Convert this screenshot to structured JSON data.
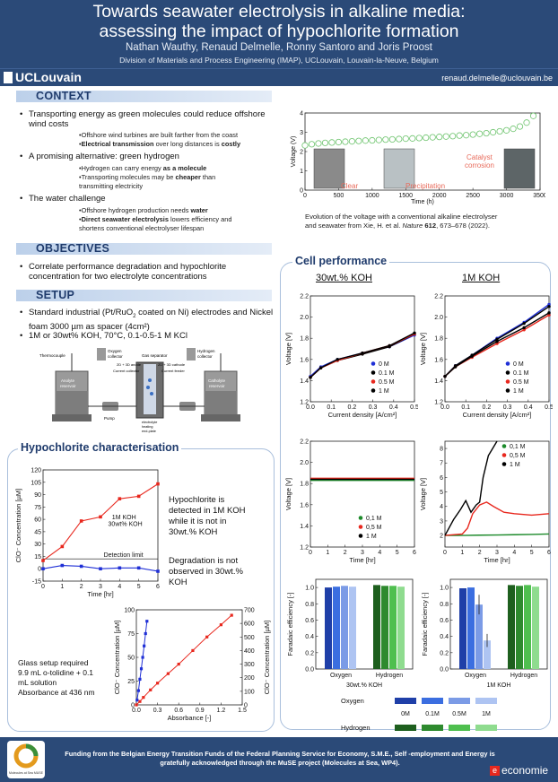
{
  "header": {
    "title_l1": "Towards seawater electrolysis in alkaline media:",
    "title_l2": "assessing the impact of hypochlorite formation",
    "authors": "Nathan Wauthy, Renaud Delmelle, Ronny Santoro and Joris Proost",
    "affiliation": "Division of Materials and Process Engineering (IMAP), UCLouvain, Louvain-la-Neuve, Belgium",
    "logo": "UCLouvain",
    "email": "renaud.delmelle@uclouvain.be"
  },
  "context": {
    "heading": "CONTEXT",
    "b1": "Transporting energy as green molecules could reduce offshore wind costs",
    "b1s1": "•Offshore wind turbines are built farther from the coast",
    "b1s2a": "•",
    "b1s2b": "Electrical transmission",
    "b1s2c": " over long distances is ",
    "b1s2d": "costly",
    "b2": "A promising alternative: green hydrogen",
    "b2s1a": "•Hydrogen can carry energy ",
    "b2s1b": "as a molecule",
    "b2s2a": "•Transporting molecules may be ",
    "b2s2b": "cheaper",
    "b2s2c": " than",
    "b2s2d": "transmitting electricity",
    "b3": "The water challenge",
    "b3s1a": "•Offshore hydrogen production needs ",
    "b3s1b": "water",
    "b3s2a": "•",
    "b3s2b": "Direct seawater electrolysis",
    "b3s2c": " lowers efficiency and",
    "b3s2d": "shortens conventional electrolyser lifespan",
    "fig_caption_l1": "Evolution of the voltage with a conventional alkaline electrolyser",
    "fig_caption_l2a": "and seawater from Xie, H. et al. ",
    "fig_caption_l2b": "Nature",
    "fig_caption_l2c": " 612",
    "fig_caption_l2d": ", 673–678 (2022).",
    "fig_labels": {
      "clear": "Clear",
      "precipitation": "Precipitation",
      "catalyst": "Catalyst",
      "corrosion": "corrosion",
      "xlabel": "Time (h)",
      "ylabel": "Voltage (V)"
    }
  },
  "objectives": {
    "heading": "OBJECTIVES",
    "b1": "Correlate performance degradation and hypochlorite concentration for two electrolyte concentrations"
  },
  "setup": {
    "heading": "SETUP",
    "b1a": "Standard industrial (Pt/RuO",
    "b1sub": "2",
    "b1b": " coated on Ni) electrodes and Nickel foam 3000 µm as spacer (4cm²)",
    "b2": "1M or 30wt% KOH, 70°C, 0.1-0.5-1 M KCl",
    "diagram": {
      "thermocouple": "Thermocouple",
      "oxygen": "Oxygen",
      "oxygen2": "collector",
      "hydrogen": "Hydrogen",
      "hydrogen2": "collector",
      "gas_sep": "Gas separator",
      "anode": "2D + 3D anode",
      "cathode": "2D + 3D cathode",
      "cur_coll": "Current collector",
      "cur_feed": "Current feeder",
      "anolyte": "Anolyte",
      "anolyte2": "reservoir",
      "catholyte": "Catholyte",
      "catholyte2": "reservoir",
      "pump": "Pump",
      "elec": "electrolyte",
      "elec2": "heating",
      "elec3": "end-plate"
    }
  },
  "hypo": {
    "heading": "Hypochlorite characterisation",
    "text1_l1": "Hypochlorite is",
    "text1_l2": "detected in 1M KOH",
    "text1_l3": "while it is not in",
    "text1_l4": "30wt.% KOH",
    "text2_l1": "Degradation is not",
    "text2_l2": "observed in 30wt.%",
    "text2_l3": "KOH",
    "glass_l1": "Glass setup required",
    "glass_l2": "9.9 mL o-tolidine + 0.1",
    "glass_l3": "mL solution",
    "glass_l4": "Absorbance at 436 nm"
  },
  "cell": {
    "heading": "Cell performance",
    "col1": "30wt.% KOH",
    "col2": "1M KOH"
  },
  "footer": {
    "l1": "Funding from the Belgian Energy Transition Funds of the Federal Planning Service for Economy, S.M.E., Self -employment and Energy is",
    "l2": "gratefully acknowledged through the MuSE project (Molecules at Sea, WP4).",
    "left_logo": "Molecules at Sea MUSE",
    "right_logo": "economie"
  },
  "colors": {
    "navy": "#2b4a78",
    "red": "#e8281e",
    "blue": "#1f2fd6",
    "green": "#1c8a2a",
    "black": "#000000"
  },
  "chart_data": [
    {
      "id": "context-voltage",
      "type": "scatter",
      "title": "",
      "xlabel": "Time (h)",
      "ylabel": "Voltage (V)",
      "xlim": [
        0,
        3500
      ],
      "ylim": [
        0,
        4
      ],
      "xticks": [
        0,
        500,
        1000,
        1500,
        2000,
        2500,
        3000,
        3500
      ],
      "yticks": [
        0,
        1,
        2,
        3,
        4
      ],
      "x": [
        0,
        100,
        200,
        300,
        400,
        500,
        600,
        700,
        800,
        900,
        1000,
        1100,
        1200,
        1300,
        1400,
        1500,
        1600,
        1700,
        1800,
        1900,
        2000,
        2100,
        2200,
        2300,
        2400,
        2500,
        2600,
        2700,
        2800,
        2900,
        3000,
        3100,
        3200,
        3300,
        3400
      ],
      "y": [
        2.32,
        2.38,
        2.42,
        2.45,
        2.47,
        2.49,
        2.51,
        2.53,
        2.55,
        2.57,
        2.58,
        2.6,
        2.62,
        2.63,
        2.65,
        2.67,
        2.68,
        2.7,
        2.72,
        2.74,
        2.76,
        2.78,
        2.8,
        2.83,
        2.85,
        2.88,
        2.92,
        2.95,
        3.0,
        3.05,
        3.1,
        3.18,
        3.3,
        3.5,
        3.85
      ]
    },
    {
      "id": "iv-30wt",
      "type": "line",
      "xlabel": "Current density [A/cm²]",
      "ylabel": "Voltage [V]",
      "xlim": [
        0,
        0.5
      ],
      "ylim": [
        1.2,
        2.2
      ],
      "xticks": [
        "0.0",
        "0.1",
        "0.2",
        "0.3",
        "0.4",
        "0.5"
      ],
      "yticks": [
        "1.2",
        "1.4",
        "1.6",
        "1.8",
        "2.0",
        "2.2"
      ],
      "series": [
        {
          "name": "0 M",
          "color": "#1f2fd6",
          "x": [
            0,
            0.05,
            0.13,
            0.25,
            0.38,
            0.5
          ],
          "y": [
            1.44,
            1.53,
            1.6,
            1.66,
            1.72,
            1.83
          ]
        },
        {
          "name": "0.1 M",
          "color": "#000000",
          "x": [
            0,
            0.05,
            0.13,
            0.25,
            0.38,
            0.5
          ],
          "y": [
            1.43,
            1.52,
            1.59,
            1.65,
            1.72,
            1.84
          ]
        },
        {
          "name": "0.5 M",
          "color": "#e8281e",
          "x": [
            0,
            0.05,
            0.13,
            0.25,
            0.38,
            0.5
          ],
          "y": [
            1.43,
            1.52,
            1.59,
            1.66,
            1.73,
            1.84
          ]
        },
        {
          "name": "1 M",
          "color": "#000000",
          "x": [
            0,
            0.05,
            0.13,
            0.25,
            0.38,
            0.5
          ],
          "y": [
            1.43,
            1.52,
            1.6,
            1.66,
            1.73,
            1.85
          ]
        }
      ]
    },
    {
      "id": "iv-1M",
      "type": "line",
      "xlabel": "Current density [A/cm²]",
      "ylabel": "Voltage [V]",
      "xlim": [
        0,
        0.5
      ],
      "ylim": [
        1.2,
        2.2
      ],
      "xticks": [
        "0.0",
        "0.1",
        "0.2",
        "0.3",
        "0.4",
        "0.5"
      ],
      "yticks": [
        "1.2",
        "1.4",
        "1.6",
        "1.8",
        "2.0",
        "2.2"
      ],
      "series": [
        {
          "name": "0 M",
          "color": "#1f2fd6",
          "x": [
            0,
            0.05,
            0.13,
            0.25,
            0.38,
            0.5
          ],
          "y": [
            1.44,
            1.54,
            1.64,
            1.8,
            1.95,
            2.12
          ]
        },
        {
          "name": "0.1 M",
          "color": "#000000",
          "x": [
            0,
            0.05,
            0.13,
            0.25,
            0.38,
            0.5
          ],
          "y": [
            1.44,
            1.54,
            1.64,
            1.79,
            1.94,
            2.1
          ]
        },
        {
          "name": "0.5 M",
          "color": "#e8281e",
          "x": [
            0,
            0.05,
            0.13,
            0.25,
            0.38,
            0.5
          ],
          "y": [
            1.44,
            1.53,
            1.62,
            1.75,
            1.88,
            2.02
          ]
        },
        {
          "name": "1 M",
          "color": "#000000",
          "x": [
            0,
            0.05,
            0.13,
            0.25,
            0.38,
            0.5
          ],
          "y": [
            1.44,
            1.53,
            1.63,
            1.77,
            1.9,
            2.04
          ]
        }
      ]
    },
    {
      "id": "vt-30wt",
      "type": "line",
      "xlabel": "Time [hr]",
      "ylabel": "Voltage [V]",
      "xlim": [
        0,
        6
      ],
      "ylim": [
        1.2,
        2.2
      ],
      "xticks": [
        "0",
        "1",
        "2",
        "3",
        "4",
        "5",
        "6"
      ],
      "yticks": [
        "1.2",
        "1.4",
        "1.6",
        "1.8",
        "2.0",
        "2.2"
      ],
      "series": [
        {
          "name": "0,1 M",
          "color": "#1c8a2a",
          "x": [
            0,
            6
          ],
          "y": [
            1.83,
            1.83
          ]
        },
        {
          "name": "0,5 M",
          "color": "#e8281e",
          "x": [
            0,
            6
          ],
          "y": [
            1.85,
            1.85
          ]
        },
        {
          "name": "1 M",
          "color": "#000000",
          "x": [
            0,
            6
          ],
          "y": [
            1.84,
            1.84
          ]
        }
      ]
    },
    {
      "id": "vt-1M",
      "type": "line",
      "xlabel": "Time [hr]",
      "ylabel": "Voltage [V]",
      "xlim": [
        0,
        6
      ],
      "ylim": [
        1.2,
        8.5
      ],
      "xticks": [
        "0",
        "1",
        "2",
        "3",
        "4",
        "5",
        "6"
      ],
      "yticks": [
        "2",
        "3",
        "4",
        "5",
        "6",
        "7",
        "8"
      ],
      "series": [
        {
          "name": "0,1 M",
          "color": "#1c8a2a",
          "x": [
            0,
            1,
            2,
            3,
            4,
            5,
            6
          ],
          "y": [
            2.0,
            2.0,
            2.02,
            2.03,
            2.05,
            2.07,
            2.1
          ]
        },
        {
          "name": "0,5 M",
          "color": "#e8281e",
          "x": [
            0,
            1.0,
            1.3,
            1.6,
            2.0,
            2.4,
            2.8,
            3.4,
            4,
            5,
            6
          ],
          "y": [
            2.0,
            2.1,
            2.5,
            3.5,
            4.1,
            4.3,
            4.0,
            3.6,
            3.5,
            3.4,
            3.5
          ]
        },
        {
          "name": "1 M",
          "color": "#000000",
          "x": [
            0,
            0.5,
            0.9,
            1.2,
            1.5,
            1.8,
            2.0,
            2.2,
            2.5,
            3.0
          ],
          "y": [
            2.0,
            3.1,
            3.8,
            4.4,
            3.6,
            4.1,
            4.3,
            6.0,
            7.5,
            8.5
          ]
        }
      ]
    },
    {
      "id": "fe-30wt",
      "type": "bar",
      "xlabel": "30wt.% KOH",
      "ylabel": "Faradaic efficiency [-]",
      "ylim": [
        0,
        1.1
      ],
      "yticks": [
        "0.0",
        "0.2",
        "0.4",
        "0.6",
        "0.8",
        "1.0"
      ],
      "categories": [
        "Oxygen",
        "Hydrogen"
      ],
      "series": [
        {
          "name": "0M",
          "values": [
            1.0,
            1.03
          ]
        },
        {
          "name": "0.1M",
          "values": [
            1.01,
            1.02
          ]
        },
        {
          "name": "0.5M",
          "values": [
            1.02,
            1.02
          ]
        },
        {
          "name": "1M",
          "values": [
            1.01,
            1.01
          ]
        }
      ]
    },
    {
      "id": "fe-1M",
      "type": "bar",
      "xlabel": "1M KOH",
      "ylabel": "Faradaic efficiency [-]",
      "ylim": [
        0,
        1.1
      ],
      "yticks": [
        "0.0",
        "0.2",
        "0.4",
        "0.6",
        "0.8",
        "1.0"
      ],
      "categories": [
        "Oxygen",
        "Hydrogen"
      ],
      "series": [
        {
          "name": "0M",
          "values": [
            0.99,
            1.03
          ]
        },
        {
          "name": "0.1M",
          "values": [
            1.0,
            1.02
          ]
        },
        {
          "name": "0.5M",
          "values": [
            0.79,
            1.03
          ]
        },
        {
          "name": "1M",
          "values": [
            0.35,
            1.01
          ]
        }
      ]
    },
    {
      "id": "clo-time",
      "type": "line",
      "xlabel": "Time [hr]",
      "ylabel": "ClO⁻ Concentration [µM]",
      "xlim": [
        0,
        6
      ],
      "ylim": [
        -15,
        120
      ],
      "xticks": [
        "0",
        "1",
        "2",
        "3",
        "4",
        "5",
        "6"
      ],
      "yticks": [
        "-15",
        "0",
        "15",
        "30",
        "45",
        "60",
        "75",
        "90",
        "105",
        "120"
      ],
      "annotation": "Detection limit",
      "detection_limit": 12,
      "series": [
        {
          "name": "1M KOH",
          "color": "#e8281e",
          "x": [
            0,
            1,
            2,
            3,
            4,
            5,
            6
          ],
          "y": [
            10,
            27,
            58,
            63,
            85,
            88,
            103
          ]
        },
        {
          "name": "30wt% KOH",
          "color": "#1f2fd6",
          "x": [
            0,
            1,
            2,
            3,
            4,
            5,
            6
          ],
          "y": [
            0,
            4,
            3,
            0,
            1,
            1,
            -3
          ]
        }
      ]
    },
    {
      "id": "calibration",
      "type": "line",
      "xlabel": "Absorbance [-]",
      "ylabel": "ClO⁻ Concentration [µM]",
      "ylabel_right": "ClO⁻ Concentration [µM]",
      "xlim": [
        0,
        1.5
      ],
      "xticks": [
        "0.0",
        "0.3",
        "0.6",
        "0.9",
        "1.2",
        "1.5"
      ],
      "yticks_left": [
        "0",
        "25",
        "50",
        "75",
        "100"
      ],
      "yticks_right": [
        "0",
        "100",
        "200",
        "300",
        "400",
        "500",
        "600",
        "700"
      ],
      "series": [
        {
          "name": "low range",
          "axis": "left",
          "color": "#1f2fd6",
          "x": [
            0.01,
            0.03,
            0.05,
            0.07,
            0.09,
            0.11,
            0.13,
            0.15
          ],
          "y": [
            5,
            15,
            27,
            38,
            50,
            62,
            75,
            88
          ]
        },
        {
          "name": "high range",
          "axis": "right",
          "color": "#e8281e",
          "x": [
            0,
            0.05,
            0.1,
            0.2,
            0.3,
            0.45,
            0.6,
            0.8,
            1.0,
            1.2,
            1.35
          ],
          "y": [
            0,
            25,
            55,
            110,
            160,
            230,
            300,
            400,
            500,
            590,
            660
          ]
        }
      ]
    },
    {
      "id": "legend-fe",
      "type": "table",
      "rows": [
        "Oxygen",
        "Hydrogen"
      ],
      "columns": [
        "0M",
        "0.1M",
        "0.5M",
        "1M"
      ]
    }
  ]
}
